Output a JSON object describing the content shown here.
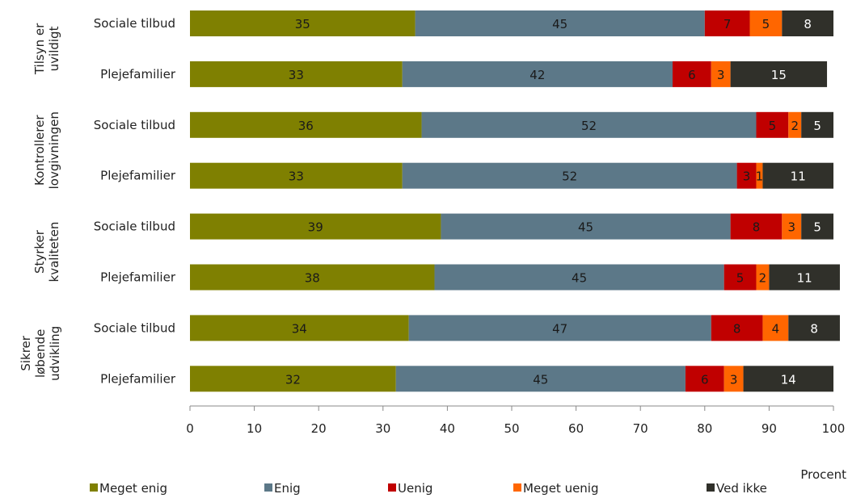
{
  "chart_data": {
    "type": "bar",
    "orientation": "horizontal",
    "stacked": true,
    "groups": [
      {
        "label_lines": [
          "Tilsyn er",
          "uvildigt"
        ],
        "rows": [
          0,
          1
        ]
      },
      {
        "label_lines": [
          "Kontrollerer",
          "lovgivningen"
        ],
        "rows": [
          2,
          3
        ]
      },
      {
        "label_lines": [
          "Styrker",
          "kvaliteten"
        ],
        "rows": [
          4,
          5
        ]
      },
      {
        "label_lines": [
          "Sikrer",
          "løbende",
          "udvikling"
        ],
        "rows": [
          6,
          7
        ]
      }
    ],
    "categories": [
      "Sociale tilbud",
      "Plejefamilier",
      "Sociale tilbud",
      "Plejefamilier",
      "Sociale tilbud",
      "Plejefamilier",
      "Sociale tilbud",
      "Plejefamilier"
    ],
    "series": [
      {
        "name": "Meget enig",
        "color": "#7f8001",
        "label_color": "#1a1a1a",
        "values": [
          35,
          33,
          36,
          33,
          39,
          38,
          34,
          32
        ]
      },
      {
        "name": "Enig",
        "color": "#5c7888",
        "label_color": "#1a1a1a",
        "values": [
          45,
          42,
          52,
          52,
          45,
          45,
          47,
          45
        ]
      },
      {
        "name": "Uenig",
        "color": "#c00000",
        "label_color": "#1a1a1a",
        "values": [
          7,
          6,
          5,
          3,
          8,
          5,
          8,
          6
        ]
      },
      {
        "name": "Meget uenig",
        "color": "#ff6600",
        "label_color": "#1a1a1a",
        "values": [
          5,
          3,
          2,
          1,
          3,
          2,
          4,
          3
        ]
      },
      {
        "name": "Ved ikke",
        "color": "#30302a",
        "label_color": "#ffffff",
        "values": [
          8,
          15,
          5,
          11,
          5,
          11,
          8,
          14
        ]
      }
    ],
    "xlim": [
      0,
      100
    ],
    "xticks": [
      0,
      10,
      20,
      30,
      40,
      50,
      60,
      70,
      80,
      90,
      100
    ],
    "xlabel": "Procent",
    "title": "",
    "legend_position": "bottom",
    "grid": false
  }
}
